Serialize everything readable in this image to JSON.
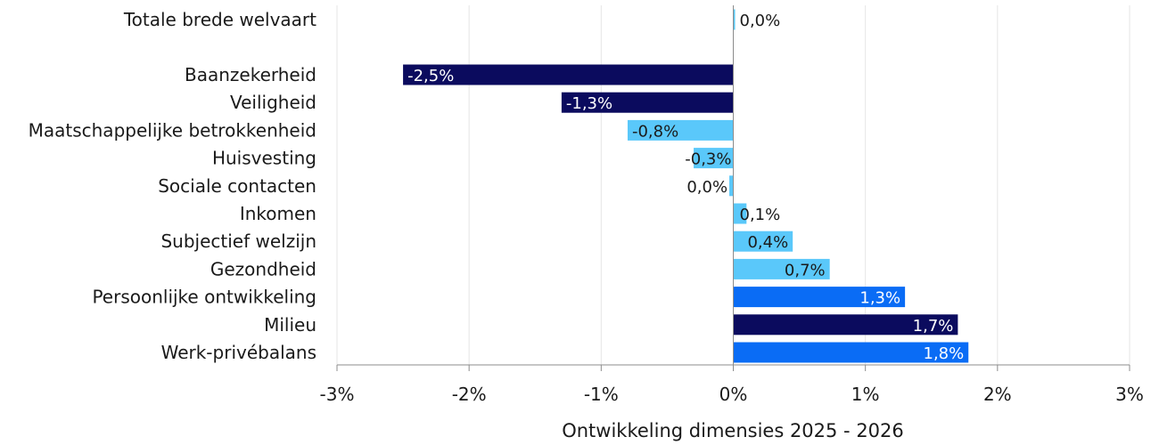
{
  "chart_data": {
    "type": "bar",
    "orientation": "horizontal",
    "xlabel": "Ontwikkeling dimensies 2025 - 2026",
    "xlim": [
      -0.03,
      0.03
    ],
    "xticks": [
      -0.03,
      -0.02,
      -0.01,
      0,
      0.01,
      0.02,
      0.03
    ],
    "xtick_labels": [
      "-3%",
      "-2%",
      "-1%",
      "0%",
      "1%",
      "2%",
      "3%"
    ],
    "grid": "vertical",
    "colors": {
      "dark_navy": "#0b0b5e",
      "light_blue": "#5ac8fa",
      "bright_blue": "#0a6cf5"
    },
    "bars": [
      {
        "category": "Totale brede welvaart",
        "value": 0.0,
        "label": "0,0%",
        "color": "light_blue",
        "group_gap_after": true
      },
      {
        "category": "Baanzekerheid",
        "value": -0.025,
        "label": "-2,5%",
        "color": "dark_navy"
      },
      {
        "category": "Veiligheid",
        "value": -0.013,
        "label": "-1,3%",
        "color": "dark_navy"
      },
      {
        "category": "Maatschappelijke betrokkenheid",
        "value": -0.008,
        "label": "-0,8%",
        "color": "light_blue"
      },
      {
        "category": "Huisvesting",
        "value": -0.003,
        "label": "-0,3%",
        "color": "light_blue"
      },
      {
        "category": "Sociale contacten",
        "value": -0.0003,
        "label": "0,0%",
        "color": "light_blue"
      },
      {
        "category": "Inkomen",
        "value": 0.001,
        "label": "0,1%",
        "color": "light_blue"
      },
      {
        "category": "Subjectief welzijn",
        "value": 0.0045,
        "label": "0,4%",
        "color": "light_blue"
      },
      {
        "category": "Gezondheid",
        "value": 0.0073,
        "label": "0,7%",
        "color": "light_blue"
      },
      {
        "category": "Persoonlijke ontwikkeling",
        "value": 0.013,
        "label": "1,3%",
        "color": "bright_blue"
      },
      {
        "category": "Milieu",
        "value": 0.017,
        "label": "1,7%",
        "color": "dark_navy"
      },
      {
        "category": "Werk-privébalans",
        "value": 0.0178,
        "label": "1,8%",
        "color": "bright_blue"
      }
    ]
  }
}
